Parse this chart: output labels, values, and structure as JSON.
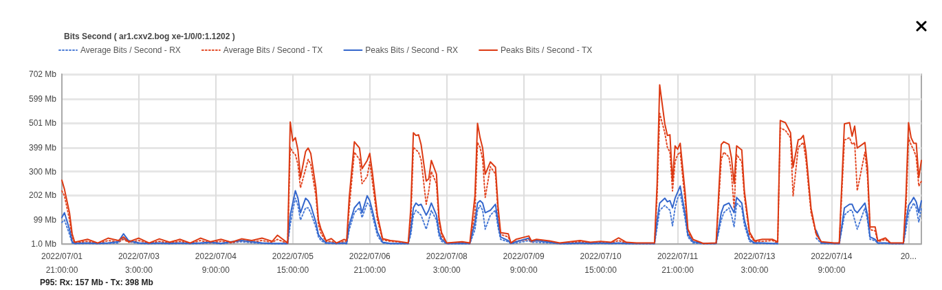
{
  "chart_data": {
    "type": "line",
    "title": "Bits Second ( ar1.cxv2.bog xe-1/0/0:1.1202 )",
    "annotations": [
      "P95: Rx: 157 Mb - Tx: 398 Mb"
    ],
    "legend": "top left",
    "grid": true,
    "marker": "none",
    "xlim": [
      "2022-07-01T21:00",
      "2022-07-15T20:00"
    ],
    "xticks": [
      {
        "value": "2022-07-01T21:00",
        "label": "2022/07/01\n21:00:00"
      },
      {
        "value": "2022-07-03T03:00",
        "label": "2022/07/03\n3:00:00"
      },
      {
        "value": "2022-07-04T09:00",
        "label": "2022/07/04\n9:00:00"
      },
      {
        "value": "2022-07-05T15:00",
        "label": "2022/07/05\n15:00:00"
      },
      {
        "value": "2022-07-06T21:00",
        "label": "2022/07/06\n21:00:00"
      },
      {
        "value": "2022-07-08T03:00",
        "label": "2022/07/08\n3:00:00"
      },
      {
        "value": "2022-07-09T09:00",
        "label": "2022/07/09\n9:00:00"
      },
      {
        "value": "2022-07-10T15:00",
        "label": "2022/07/10\n15:00:00"
      },
      {
        "value": "2022-07-11T21:00",
        "label": "2022/07/11\n21:00:00"
      },
      {
        "value": "2022-07-13T03:00",
        "label": "2022/07/13\n3:00:00"
      },
      {
        "value": "2022-07-14T09:00",
        "label": "2022/07/14\n9:00:00"
      },
      {
        "value": "2022-07-15T15:00",
        "label": "20..."
      }
    ],
    "ylim": [
      1,
      702
    ],
    "yticks": [
      {
        "value": 1,
        "label": "1.0 Mb"
      },
      {
        "value": 99,
        "label": "99 Mb"
      },
      {
        "value": 202,
        "label": "202 Mb"
      },
      {
        "value": 300,
        "label": "300 Mb"
      },
      {
        "value": 399,
        "label": "399 Mb"
      },
      {
        "value": 501,
        "label": "501 Mb"
      },
      {
        "value": 599,
        "label": "599 Mb"
      },
      {
        "value": 702,
        "label": "702 Mb"
      }
    ],
    "x": [
      "2022-07-01T21:00",
      "2022-07-01T22:00",
      "2022-07-02T00:00",
      "2022-07-02T01:00",
      "2022-07-02T02:00",
      "2022-07-02T07:00",
      "2022-07-02T11:00",
      "2022-07-02T15:00",
      "2022-07-02T19:00",
      "2022-07-02T21:00",
      "2022-07-02T23:00",
      "2022-07-03T03:00",
      "2022-07-03T07:00",
      "2022-07-03T11:00",
      "2022-07-03T15:00",
      "2022-07-03T19:00",
      "2022-07-03T23:00",
      "2022-07-04T03:00",
      "2022-07-04T07:00",
      "2022-07-04T11:00",
      "2022-07-04T15:00",
      "2022-07-04T19:00",
      "2022-07-04T23:00",
      "2022-07-05T03:00",
      "2022-07-05T07:00",
      "2022-07-05T09:00",
      "2022-07-05T13:00",
      "2022-07-05T14:00",
      "2022-07-05T15:00",
      "2022-07-05T16:00",
      "2022-07-05T17:00",
      "2022-07-05T18:00",
      "2022-07-05T20:00",
      "2022-07-05T21:00",
      "2022-07-05T22:00",
      "2022-07-06T00:00",
      "2022-07-06T01:00",
      "2022-07-06T02:00",
      "2022-07-06T04:00",
      "2022-07-06T06:00",
      "2022-07-06T08:00",
      "2022-07-06T11:00",
      "2022-07-06T12:00",
      "2022-07-06T13:00",
      "2022-07-06T15:00",
      "2022-07-06T17:00",
      "2022-07-06T18:00",
      "2022-07-06T20:00",
      "2022-07-06T21:00",
      "2022-07-06T22:00",
      "2022-07-07T00:00",
      "2022-07-07T02:00",
      "2022-07-07T05:00",
      "2022-07-07T08:00",
      "2022-07-07T12:00",
      "2022-07-07T13:00",
      "2022-07-07T14:00",
      "2022-07-07T15:00",
      "2022-07-07T16:00",
      "2022-07-07T17:00",
      "2022-07-07T19:00",
      "2022-07-07T20:00",
      "2022-07-07T21:00",
      "2022-07-07T23:00",
      "2022-07-08T00:00",
      "2022-07-08T01:00",
      "2022-07-08T03:00",
      "2022-07-08T09:00",
      "2022-07-08T12:00",
      "2022-07-08T14:00",
      "2022-07-08T15:00",
      "2022-07-08T16:00",
      "2022-07-08T17:00",
      "2022-07-08T18:00",
      "2022-07-08T20:00",
      "2022-07-08T22:00",
      "2022-07-08T23:00",
      "2022-07-09T00:00",
      "2022-07-09T03:00",
      "2022-07-09T04:00",
      "2022-07-09T06:00",
      "2022-07-09T11:00",
      "2022-07-09T12:00",
      "2022-07-09T14:00",
      "2022-07-09T19:00",
      "2022-07-09T23:00",
      "2022-07-10T03:00",
      "2022-07-10T07:00",
      "2022-07-10T11:00",
      "2022-07-10T15:00",
      "2022-07-10T19:00",
      "2022-07-10T22:00",
      "2022-07-11T01:00",
      "2022-07-11T05:00",
      "2022-07-11T09:00",
      "2022-07-11T12:00",
      "2022-07-11T13:00",
      "2022-07-11T14:00",
      "2022-07-11T16:00",
      "2022-07-11T17:00",
      "2022-07-11T18:00",
      "2022-07-11T19:00",
      "2022-07-11T20:00",
      "2022-07-11T21:00",
      "2022-07-11T22:00",
      "2022-07-12T00:00",
      "2022-07-12T01:00",
      "2022-07-12T03:00",
      "2022-07-12T07:00",
      "2022-07-12T12:00",
      "2022-07-12T14:00",
      "2022-07-12T15:00",
      "2022-07-12T17:00",
      "2022-07-12T18:00",
      "2022-07-12T19:00",
      "2022-07-12T20:00",
      "2022-07-12T22:00",
      "2022-07-12T23:00",
      "2022-07-13T01:00",
      "2022-07-13T03:00",
      "2022-07-13T06:00",
      "2022-07-13T10:00",
      "2022-07-13T12:00",
      "2022-07-13T13:00",
      "2022-07-13T15:00",
      "2022-07-13T17:00",
      "2022-07-13T18:00",
      "2022-07-13T20:00",
      "2022-07-13T21:00",
      "2022-07-13T22:00",
      "2022-07-13T23:00",
      "2022-07-14T01:00",
      "2022-07-14T03:00",
      "2022-07-14T05:00",
      "2022-07-14T10:00",
      "2022-07-14T12:00",
      "2022-07-14T14:00",
      "2022-07-14T16:00",
      "2022-07-14T17:00",
      "2022-07-14T18:00",
      "2022-07-14T19:00",
      "2022-07-14T22:00",
      "2022-07-14T23:00",
      "2022-07-15T00:00",
      "2022-07-15T02:00",
      "2022-07-15T03:00",
      "2022-07-15T06:00",
      "2022-07-15T08:00",
      "2022-07-15T13:00",
      "2022-07-15T14:00",
      "2022-07-15T15:00",
      "2022-07-15T16:00",
      "2022-07-15T17:00",
      "2022-07-15T18:00",
      "2022-07-15T19:00",
      "2022-07-15T20:00"
    ],
    "series": [
      {
        "name": "Average Bits / Second - RX",
        "color": "#4a7bd6",
        "line_style": "dotted",
        "values": [
          90,
          100,
          40,
          5,
          2,
          3,
          2,
          3,
          5,
          25,
          10,
          3,
          2,
          3,
          2,
          3,
          2,
          3,
          5,
          2,
          6,
          10,
          6,
          3,
          2,
          2,
          2,
          80,
          140,
          190,
          160,
          100,
          150,
          150,
          130,
          70,
          30,
          15,
          3,
          3,
          2,
          3,
          2,
          60,
          130,
          150,
          110,
          170,
          160,
          120,
          35,
          5,
          2,
          2,
          2,
          40,
          120,
          140,
          130,
          120,
          62,
          100,
          140,
          100,
          35,
          12,
          2,
          2,
          2,
          60,
          140,
          160,
          140,
          62,
          120,
          140,
          70,
          20,
          10,
          2,
          5,
          15,
          8,
          8,
          5,
          2,
          2,
          3,
          2,
          3,
          2,
          3,
          2,
          2,
          2,
          2,
          70,
          140,
          160,
          150,
          140,
          76,
          150,
          190,
          210,
          100,
          30,
          5,
          2,
          2,
          100,
          130,
          150,
          120,
          71,
          170,
          150,
          80,
          12,
          3,
          3,
          2,
          2,
          null,
          null,
          null,
          null,
          null,
          null,
          null,
          null,
          null,
          25,
          3,
          2,
          2,
          120,
          140,
          140,
          100,
          62,
          150,
          100,
          20,
          15,
          3,
          3,
          2,
          2,
          60,
          130,
          150,
          170,
          150,
          91,
          150
        ]
      },
      {
        "name": "Average Bits / Second - TX",
        "color": "#e34a26",
        "line_style": "dotted",
        "values": [
          220,
          200,
          100,
          25,
          5,
          12,
          3,
          15,
          10,
          20,
          8,
          15,
          4,
          12,
          5,
          12,
          4,
          15,
          6,
          12,
          6,
          15,
          10,
          15,
          8,
          20,
          3,
          400,
          380,
          370,
          330,
          233,
          310,
          350,
          330,
          200,
          80,
          45,
          10,
          12,
          3,
          12,
          10,
          150,
          380,
          350,
          250,
          280,
          340,
          260,
          100,
          18,
          12,
          10,
          3,
          100,
          400,
          390,
          380,
          350,
          165,
          220,
          300,
          250,
          90,
          35,
          3,
          5,
          3,
          130,
          420,
          400,
          350,
          193,
          320,
          290,
          130,
          40,
          30,
          5,
          12,
          20,
          10,
          15,
          10,
          3,
          6,
          10,
          5,
          8,
          5,
          15,
          5,
          3,
          3,
          3,
          200,
          540,
          460,
          400,
          380,
          220,
          340,
          370,
          380,
          170,
          48,
          18,
          3,
          3,
          350,
          380,
          360,
          290,
          148,
          370,
          340,
          200,
          40,
          10,
          12,
          15,
          5,
          480,
          470,
          440,
          199,
          400,
          410,
          420,
          350,
          130,
          40,
          8,
          3,
          3,
          430,
          440,
          412,
          420,
          221,
          380,
          280,
          60,
          55,
          10,
          20,
          3,
          3,
          150,
          440,
          410,
          390,
          360,
          240,
          260
        ]
      },
      {
        "name": "Peaks Bits / Second - RX",
        "color": "#3366cc",
        "line_style": "solid",
        "values": [
          110,
          130,
          60,
          10,
          3,
          5,
          3,
          5,
          10,
          43,
          15,
          5,
          3,
          5,
          3,
          5,
          3,
          5,
          8,
          3,
          10,
          15,
          10,
          5,
          3,
          3,
          3,
          120,
          170,
          221,
          190,
          130,
          190,
          180,
          160,
          90,
          40,
          25,
          5,
          5,
          3,
          5,
          3,
          80,
          150,
          175,
          130,
          200,
          180,
          140,
          50,
          8,
          3,
          3,
          3,
          60,
          150,
          170,
          160,
          165,
          120,
          140,
          170,
          120,
          50,
          20,
          3,
          3,
          3,
          90,
          170,
          180,
          170,
          130,
          140,
          165,
          90,
          30,
          15,
          3,
          10,
          25,
          12,
          15,
          8,
          3,
          3,
          5,
          3,
          5,
          3,
          5,
          3,
          3,
          3,
          3,
          100,
          170,
          190,
          175,
          180,
          150,
          190,
          215,
          240,
          120,
          40,
          10,
          3,
          3,
          130,
          160,
          170,
          150,
          130,
          193,
          170,
          100,
          20,
          5,
          5,
          3,
          3,
          null,
          null,
          null,
          null,
          null,
          null,
          null,
          null,
          null,
          57,
          5,
          3,
          3,
          150,
          165,
          165,
          140,
          130,
          170,
          120,
          30,
          20,
          5,
          5,
          3,
          3,
          90,
          160,
          175,
          193,
          175,
          130,
          179
        ]
      },
      {
        "name": "Peaks Bits / Second - TX",
        "color": "#dc3912",
        "line_style": "solid",
        "values": [
          264,
          227,
          128,
          43,
          8,
          20,
          5,
          25,
          15,
          30,
          10,
          25,
          5,
          22,
          8,
          20,
          5,
          25,
          10,
          20,
          8,
          22,
          15,
          25,
          12,
          37,
          5,
          505,
          426,
          440,
          389,
          275,
          383,
          397,
          375,
          233,
          99,
          62,
          14,
          23,
          5,
          20,
          15,
          193,
          423,
          397,
          312,
          346,
          375,
          298,
          119,
          23,
          15,
          12,
          5,
          150,
          460,
          449,
          452,
          412,
          261,
          270,
          346,
          289,
          108,
          48,
          5,
          10,
          5,
          200,
          499,
          440,
          397,
          289,
          340,
          318,
          156,
          48,
          43,
          5,
          20,
          34,
          14,
          20,
          14,
          5,
          10,
          15,
          8,
          12,
          8,
          26,
          8,
          5,
          5,
          5,
          250,
          658,
          497,
          449,
          452,
          261,
          406,
          392,
          417,
          204,
          62,
          20,
          3,
          5,
          412,
          423,
          412,
          355,
          250,
          406,
          389,
          221,
          51,
          14,
          20,
          20,
          10,
          511,
          502,
          460,
          318,
          431,
          435,
          449,
          383,
          148,
          43,
          10,
          5,
          5,
          497,
          502,
          446,
          488,
          397,
          420,
          318,
          71,
          71,
          14,
          26,
          5,
          5,
          200,
          502,
          440,
          417,
          417,
          275,
          346
        ]
      }
    ]
  }
}
